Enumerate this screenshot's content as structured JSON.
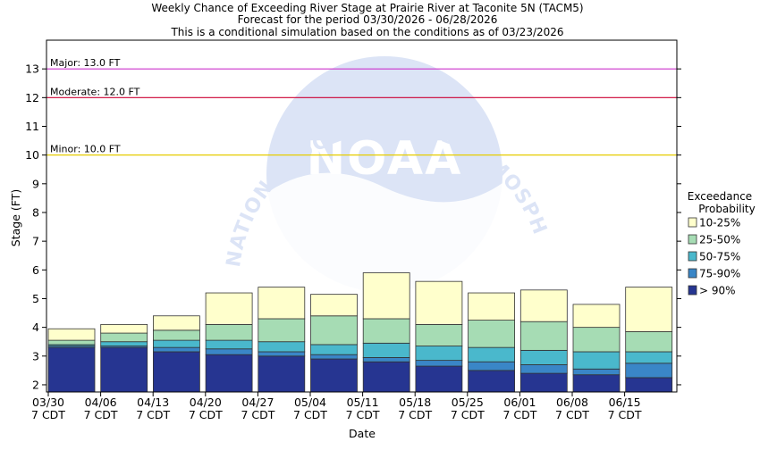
{
  "chart_data": {
    "type": "bar",
    "title_lines": [
      "Weekly Chance of Exceeding River Stage at Prairie River at Taconite 5N (TACM5)",
      "Forecast for the period 03/30/2026 - 06/28/2026",
      "This is a conditional simulation based on the conditions as of 03/23/2026"
    ],
    "xlabel": "Date",
    "ylabel": "Stage (FT)",
    "ylim": [
      1.75,
      14.0
    ],
    "yticks": [
      2,
      3,
      4,
      5,
      6,
      7,
      8,
      9,
      10,
      11,
      12,
      13
    ],
    "xtick_labels": [
      [
        "03/30",
        "7 CDT"
      ],
      [
        "04/06",
        "7 CDT"
      ],
      [
        "04/13",
        "7 CDT"
      ],
      [
        "04/20",
        "7 CDT"
      ],
      [
        "04/27",
        "7 CDT"
      ],
      [
        "05/04",
        "7 CDT"
      ],
      [
        "05/11",
        "7 CDT"
      ],
      [
        "05/18",
        "7 CDT"
      ],
      [
        "05/25",
        "7 CDT"
      ],
      [
        "06/01",
        "7 CDT"
      ],
      [
        "06/08",
        "7 CDT"
      ],
      [
        "06/15",
        "7 CDT"
      ]
    ],
    "thresholds": [
      {
        "label": "Major: 13.0 FT",
        "value": 13.0,
        "color": "#cc33cc"
      },
      {
        "label": "Moderate: 12.0 FT",
        "value": 12.0,
        "color": "#cc0033"
      },
      {
        "label": "Minor: 10.0 FT",
        "value": 10.0,
        "color": "#e6cc00"
      }
    ],
    "legend": {
      "title_lines": [
        "Exceedance",
        "Probability"
      ],
      "placement": "right"
    },
    "series": [
      {
        "name": "> 90%",
        "color": "#263591",
        "top": [
          3.3,
          3.3,
          3.15,
          3.05,
          3.0,
          2.9,
          2.8,
          2.65,
          2.5,
          2.4,
          2.35,
          2.25
        ]
      },
      {
        "name": "75-90%",
        "color": "#3a86c7",
        "top": [
          3.35,
          3.35,
          3.3,
          3.25,
          3.15,
          3.05,
          2.95,
          2.85,
          2.8,
          2.7,
          2.55,
          2.75
        ]
      },
      {
        "name": "50-75%",
        "color": "#4ab8cc",
        "top": [
          3.4,
          3.5,
          3.55,
          3.55,
          3.5,
          3.4,
          3.45,
          3.35,
          3.3,
          3.2,
          3.15,
          3.15
        ]
      },
      {
        "name": "25-50%",
        "color": "#a6dcb4",
        "top": [
          3.55,
          3.8,
          3.9,
          4.1,
          4.3,
          4.4,
          4.3,
          4.1,
          4.25,
          4.2,
          4.0,
          3.85
        ]
      },
      {
        "name": "10-25%",
        "color": "#ffffcc",
        "top": [
          3.95,
          4.1,
          4.4,
          5.2,
          5.4,
          5.15,
          5.9,
          5.6,
          5.2,
          5.3,
          4.8,
          5.4
        ]
      }
    ],
    "legend_order": [
      "10-25%",
      "25-50%",
      "50-75%",
      "75-90%",
      "> 90%"
    ],
    "watermark": {
      "text": "NATIONAL OCEANIC AND ATMOSPHERIC ADMINISTRATION",
      "logo_text": "NOAA"
    },
    "grid": false
  }
}
